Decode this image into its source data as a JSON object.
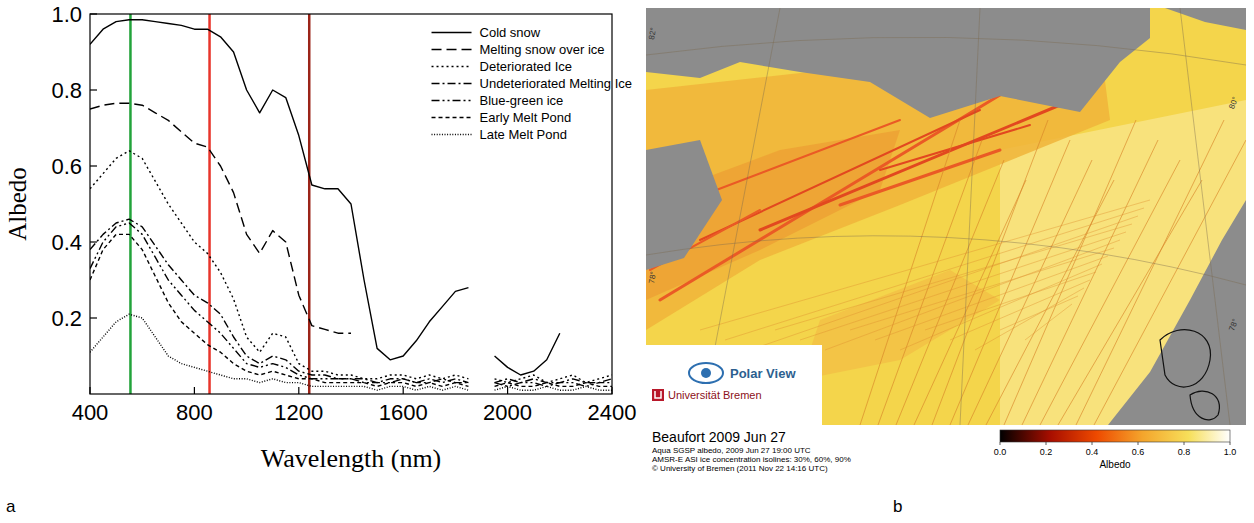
{
  "chart_data": [
    {
      "type": "line",
      "panel_label": "a",
      "xlabel": "Wavelength (nm)",
      "ylabel": "Albedo",
      "x": [
        400,
        450,
        500,
        550,
        600,
        650,
        700,
        750,
        800,
        850,
        900,
        950,
        1000,
        1050,
        1100,
        1150,
        1200,
        1250,
        1300,
        1350,
        1400,
        1450,
        1500,
        1550,
        1600,
        1650,
        1700,
        1750,
        1800,
        1850,
        1900,
        1950,
        2000,
        2050,
        2100,
        2150,
        2200,
        2250,
        2300,
        2350,
        2400
      ],
      "series": [
        {
          "name": "Cold snow",
          "color": "#000000",
          "line_style": "solid",
          "values": [
            0.92,
            0.96,
            0.98,
            0.985,
            0.985,
            0.98,
            0.975,
            0.97,
            0.96,
            0.96,
            0.94,
            0.9,
            0.8,
            0.74,
            0.8,
            0.78,
            0.68,
            0.55,
            0.54,
            0.54,
            0.5,
            0.3,
            0.12,
            0.09,
            0.1,
            0.14,
            0.19,
            0.23,
            0.27,
            0.28,
            null,
            0.1,
            0.07,
            0.05,
            0.06,
            0.09,
            0.16,
            null,
            null,
            null,
            null
          ]
        },
        {
          "name": "Melting snow over ice",
          "color": "#000000",
          "line_style": "dashed",
          "values": [
            0.75,
            0.76,
            0.765,
            0.765,
            0.76,
            0.74,
            0.72,
            0.69,
            0.66,
            0.65,
            0.6,
            0.53,
            0.42,
            0.37,
            0.43,
            0.4,
            0.26,
            0.18,
            0.17,
            0.16,
            0.16,
            null,
            null,
            null,
            null,
            null,
            null,
            null,
            null,
            null,
            null,
            null,
            null,
            null,
            null,
            null,
            null,
            null,
            null,
            null,
            null
          ]
        },
        {
          "name": "Deteriorated Ice",
          "color": "#000000",
          "line_style": "dotted",
          "values": [
            0.54,
            0.58,
            0.62,
            0.64,
            0.62,
            0.56,
            0.5,
            0.45,
            0.4,
            0.37,
            0.32,
            0.25,
            0.15,
            0.11,
            0.16,
            0.15,
            0.08,
            0.06,
            0.06,
            0.05,
            0.05,
            0.04,
            0.04,
            0.05,
            0.05,
            0.04,
            0.05,
            0.04,
            0.05,
            0.04,
            null,
            0.04,
            0.03,
            0.04,
            0.05,
            0.03,
            0.04,
            0.05,
            0.03,
            0.04,
            0.05
          ]
        },
        {
          "name": "Undeteriorated Melting Ice",
          "color": "#000000",
          "line_style": "dash-dot",
          "values": [
            0.38,
            0.42,
            0.45,
            0.46,
            0.44,
            0.39,
            0.34,
            0.3,
            0.26,
            0.24,
            0.21,
            0.15,
            0.1,
            0.08,
            0.1,
            0.09,
            0.06,
            0.05,
            0.05,
            0.04,
            0.04,
            0.04,
            0.03,
            0.04,
            0.04,
            0.03,
            0.04,
            0.03,
            0.04,
            0.03,
            null,
            0.03,
            0.04,
            0.03,
            0.04,
            0.03,
            0.03,
            0.04,
            0.03,
            0.03,
            0.04
          ]
        },
        {
          "name": "Blue-green ice",
          "color": "#000000",
          "line_style": "dash-dot-dot",
          "values": [
            0.33,
            0.4,
            0.44,
            0.45,
            0.42,
            0.36,
            0.3,
            0.26,
            0.22,
            0.19,
            0.16,
            0.12,
            0.08,
            0.07,
            0.08,
            0.07,
            0.05,
            0.04,
            0.04,
            0.04,
            0.04,
            0.03,
            0.03,
            0.03,
            0.04,
            0.03,
            0.03,
            0.04,
            0.03,
            0.03,
            null,
            0.03,
            0.02,
            0.03,
            0.03,
            0.02,
            0.03,
            0.03,
            0.02,
            0.03,
            0.03
          ]
        },
        {
          "name": "Early Melt Pond",
          "color": "#000000",
          "line_style": "short-dashed",
          "values": [
            0.3,
            0.38,
            0.42,
            0.42,
            0.38,
            0.31,
            0.24,
            0.19,
            0.16,
            0.13,
            0.11,
            0.08,
            0.06,
            0.05,
            0.06,
            0.05,
            0.04,
            0.04,
            0.03,
            0.03,
            0.03,
            0.03,
            0.02,
            0.03,
            0.03,
            0.02,
            0.03,
            0.02,
            0.03,
            0.02,
            null,
            0.02,
            0.03,
            0.02,
            0.02,
            0.03,
            0.02,
            0.02,
            0.03,
            0.02,
            0.02
          ]
        },
        {
          "name": "Late Melt Pond",
          "color": "#000000",
          "line_style": "dense-dotted",
          "values": [
            0.11,
            0.15,
            0.19,
            0.21,
            0.2,
            0.15,
            0.1,
            0.08,
            0.07,
            0.06,
            0.05,
            0.04,
            0.04,
            0.03,
            0.04,
            0.03,
            0.03,
            0.02,
            0.02,
            0.02,
            0.02,
            0.02,
            0.01,
            0.02,
            0.02,
            0.01,
            0.02,
            0.01,
            0.02,
            0.01,
            null,
            0.01,
            0.02,
            0.01,
            0.01,
            0.02,
            0.01,
            0.01,
            0.02,
            0.01,
            0.01
          ]
        }
      ],
      "xlim": [
        400,
        2400
      ],
      "ylim": [
        0,
        1
      ],
      "xticks": [
        400,
        800,
        1200,
        1600,
        2000,
        2400
      ],
      "yticks": [
        0.2,
        0.4,
        0.6,
        0.8,
        {
          "value": 1,
          "label": "1.0"
        }
      ],
      "legend": "upper right",
      "reference_lines": [
        {
          "x": 555,
          "color": "#22a33a"
        },
        {
          "x": 858,
          "color": "#e8352b"
        },
        {
          "x": 1240,
          "color": "#9b2418"
        }
      ]
    },
    {
      "type": "map",
      "panel_label": "b",
      "title": "Beaufort 2009 Jun 27",
      "annotations": [
        "Aqua SGSP albedo, 2009 Jun 27 19:00 UTC",
        "AMSR-E ASI ice concentration isolines: 30%, 60%, 90%",
        "© University of Bremen (2011 Nov 22 14:16 UTC)"
      ],
      "logo": [
        "Polar View",
        "Universität Bremen"
      ],
      "latitude_labels": [
        {
          "value": 82,
          "label": "82°"
        },
        {
          "value": 80,
          "label": "80°"
        },
        {
          "value": 78,
          "label": "78°"
        },
        {
          "value": 78,
          "label": "78°"
        }
      ],
      "colorbar": {
        "range": [
          0,
          1
        ],
        "ticks": [
          {
            "value": 0,
            "label": "0.0"
          },
          0.2,
          0.4,
          0.6,
          0.8,
          {
            "value": 1,
            "label": "1.0"
          }
        ],
        "label": "Albedo"
      }
    }
  ]
}
